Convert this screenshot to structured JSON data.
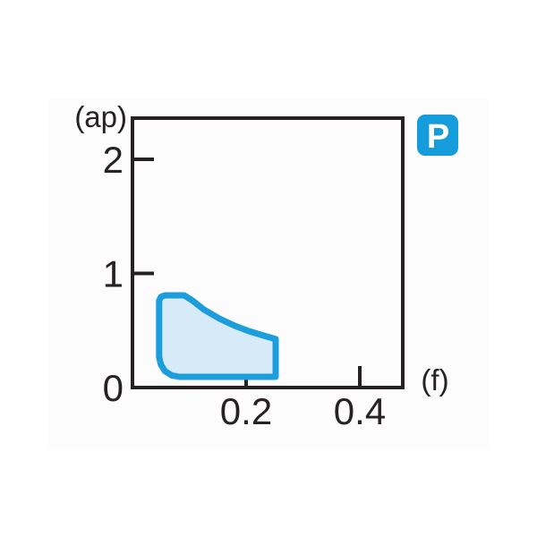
{
  "badge": {
    "label": "P",
    "color": "#149CDB"
  },
  "chart_data": {
    "type": "area",
    "title": "",
    "xlabel": "(f)",
    "ylabel": "(ap)",
    "xlim": [
      0,
      0.475
    ],
    "ylim": [
      0,
      2.36
    ],
    "x_ticks": [
      {
        "value": 0.2,
        "label": "0.2"
      },
      {
        "value": 0.4,
        "label": "0.4"
      }
    ],
    "y_ticks": [
      {
        "value": 0,
        "label": "0"
      },
      {
        "value": 1,
        "label": "1"
      },
      {
        "value": 2,
        "label": "2"
      }
    ],
    "grid": false,
    "legend_position": "top-right-outside",
    "series": [
      {
        "name": "P",
        "fill_color": "#D7EAF7",
        "line_color": "#1C9DDC",
        "outline_f_ap": [
          [
            0.057,
            0.808
          ],
          [
            0.091,
            0.808
          ],
          [
            0.106,
            0.761
          ],
          [
            0.126,
            0.682
          ],
          [
            0.153,
            0.604
          ],
          [
            0.18,
            0.541
          ],
          [
            0.205,
            0.494
          ],
          [
            0.231,
            0.455
          ],
          [
            0.252,
            0.424
          ],
          [
            0.252,
            0.094
          ],
          [
            0.082,
            0.094
          ],
          [
            0.069,
            0.107
          ],
          [
            0.057,
            0.144
          ],
          [
            0.05,
            0.201
          ],
          [
            0.047,
            0.267
          ],
          [
            0.047,
            0.761
          ],
          [
            0.05,
            0.794
          ]
        ]
      }
    ]
  }
}
